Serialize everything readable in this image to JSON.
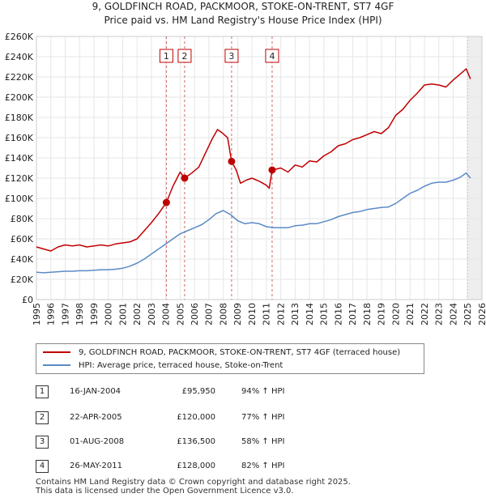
{
  "chart_data": {
    "type": "line",
    "title": "9, GOLDFINCH ROAD, PACKMOOR, STOKE-ON-TRENT, ST7 4GF",
    "subtitle": "Price paid vs. HM Land Registry's House Price Index (HPI)",
    "xlabel": "",
    "ylabel": "",
    "xlim": [
      1995,
      2026
    ],
    "ylim": [
      0,
      260000
    ],
    "x_ticks": [
      1995,
      1996,
      1997,
      1998,
      1999,
      2000,
      2001,
      2002,
      2003,
      2004,
      2005,
      2006,
      2007,
      2008,
      2009,
      2010,
      2011,
      2012,
      2013,
      2014,
      2015,
      2016,
      2017,
      2018,
      2019,
      2020,
      2021,
      2022,
      2023,
      2024,
      2025,
      2026
    ],
    "x_tick_labels": [
      "1995",
      "1996",
      "1997",
      "1998",
      "1999",
      "2000",
      "2001",
      "2002",
      "2003",
      "2004",
      "2005",
      "2006",
      "2007",
      "2008",
      "2009",
      "2010",
      "2011",
      "2012",
      "2013",
      "2014",
      "2015",
      "2016",
      "2017",
      "2018",
      "2019",
      "2020",
      "2021",
      "2022",
      "2023",
      "2024",
      "2025",
      "2026"
    ],
    "y_ticks": [
      0,
      20000,
      40000,
      60000,
      80000,
      100000,
      120000,
      140000,
      160000,
      180000,
      200000,
      220000,
      240000,
      260000
    ],
    "y_tick_labels": [
      "£0",
      "£20K",
      "£40K",
      "£60K",
      "£80K",
      "£100K",
      "£120K",
      "£140K",
      "£160K",
      "£180K",
      "£200K",
      "£220K",
      "£240K",
      "£260K"
    ],
    "grid": true,
    "series": [
      {
        "name": "9, GOLDFINCH ROAD, PACKMOOR, STOKE-ON-TRENT, ST7 4GF (terraced house)",
        "color": "#c00000",
        "x": [
          1995.0,
          1995.5,
          1996.0,
          1996.5,
          1997.0,
          1997.5,
          1998.0,
          1998.5,
          1999.0,
          1999.5,
          2000.0,
          2000.5,
          2001.0,
          2001.5,
          2002.0,
          2002.5,
          2003.0,
          2003.5,
          2004.04,
          2004.5,
          2005.0,
          2005.31,
          2005.8,
          2006.3,
          2006.8,
          2007.2,
          2007.6,
          2007.9,
          2008.3,
          2008.58,
          2008.9,
          2009.2,
          2009.6,
          2010.0,
          2010.5,
          2011.0,
          2011.2,
          2011.4,
          2012.0,
          2012.5,
          2013.0,
          2013.5,
          2014.0,
          2014.5,
          2015.0,
          2015.5,
          2016.0,
          2016.5,
          2017.0,
          2017.5,
          2018.0,
          2018.5,
          2019.0,
          2019.5,
          2020.0,
          2020.5,
          2021.0,
          2021.5,
          2022.0,
          2022.5,
          2023.0,
          2023.5,
          2024.0,
          2024.5,
          2024.9,
          2025.2
        ],
        "values": [
          52000,
          50000,
          48000,
          52000,
          54000,
          53000,
          54000,
          52000,
          53000,
          54000,
          53000,
          55000,
          56000,
          57000,
          60000,
          68000,
          76000,
          85000,
          95950,
          112000,
          126000,
          120000,
          125000,
          131000,
          146000,
          158000,
          168000,
          165000,
          160000,
          136500,
          128000,
          115000,
          118000,
          120000,
          117000,
          113000,
          110000,
          128000,
          130000,
          126000,
          133000,
          131000,
          137000,
          136000,
          142000,
          146000,
          152000,
          154000,
          158000,
          160000,
          163000,
          166000,
          164000,
          170000,
          182000,
          188000,
          197000,
          204000,
          212000,
          213000,
          212000,
          210000,
          217000,
          223000,
          228000,
          218000
        ]
      },
      {
        "name": "HPI: Average price, terraced house, Stoke-on-Trent",
        "color": "#5b8ac6",
        "x": [
          1995.0,
          1995.5,
          1996.0,
          1996.5,
          1997.0,
          1997.5,
          1998.0,
          1998.5,
          1999.0,
          1999.5,
          2000.0,
          2000.5,
          2001.0,
          2001.5,
          2002.0,
          2002.5,
          2003.0,
          2003.5,
          2004.0,
          2004.5,
          2005.0,
          2005.5,
          2006.0,
          2006.5,
          2007.0,
          2007.5,
          2008.0,
          2008.5,
          2009.0,
          2009.5,
          2010.0,
          2010.5,
          2011.0,
          2011.5,
          2012.0,
          2012.5,
          2013.0,
          2013.5,
          2014.0,
          2014.5,
          2015.0,
          2015.5,
          2016.0,
          2016.5,
          2017.0,
          2017.5,
          2018.0,
          2018.5,
          2019.0,
          2019.5,
          2020.0,
          2020.5,
          2021.0,
          2021.5,
          2022.0,
          2022.5,
          2023.0,
          2023.5,
          2024.0,
          2024.5,
          2024.9,
          2025.2
        ],
        "values": [
          27000,
          26500,
          27000,
          27500,
          28000,
          28000,
          28500,
          28500,
          29000,
          29500,
          29500,
          30000,
          31000,
          33000,
          36000,
          40000,
          45000,
          50000,
          55000,
          60000,
          65000,
          68000,
          71000,
          74000,
          79000,
          85000,
          88000,
          84000,
          78000,
          75000,
          76000,
          75000,
          72000,
          71000,
          71000,
          71000,
          73000,
          73500,
          75000,
          75000,
          77000,
          79000,
          82000,
          84000,
          86000,
          87000,
          89000,
          90000,
          91000,
          91500,
          95000,
          100000,
          105000,
          108000,
          112000,
          115000,
          116000,
          116000,
          118000,
          121000,
          125000,
          120000
        ]
      }
    ],
    "annotations": [
      {
        "label": "1",
        "x": 2004.04,
        "y": 95950
      },
      {
        "label": "2",
        "x": 2005.31,
        "y": 120000
      },
      {
        "label": "3",
        "x": 2008.58,
        "y": 136500
      },
      {
        "label": "4",
        "x": 2011.4,
        "y": 128000
      }
    ],
    "shaded_region": [
      2025.0,
      2026
    ]
  },
  "legend": {
    "property_label": "9, GOLDFINCH ROAD, PACKMOOR, STOKE-ON-TRENT, ST7 4GF (terraced house)",
    "hpi_label": "HPI: Average price, terraced house, Stoke-on-Trent"
  },
  "transactions": [
    {
      "num": "1",
      "date": "16-JAN-2004",
      "price": "£95,950",
      "hpi": "94% ↑ HPI"
    },
    {
      "num": "2",
      "date": "22-APR-2005",
      "price": "£120,000",
      "hpi": "77% ↑ HPI"
    },
    {
      "num": "3",
      "date": "01-AUG-2008",
      "price": "£136,500",
      "hpi": "58% ↑ HPI"
    },
    {
      "num": "4",
      "date": "26-MAY-2011",
      "price": "£128,000",
      "hpi": "82% ↑ HPI"
    }
  ],
  "footer": {
    "line1": "Contains HM Land Registry data © Crown copyright and database right 2025.",
    "line2": "This data is licensed under the Open Government Licence v3.0."
  }
}
